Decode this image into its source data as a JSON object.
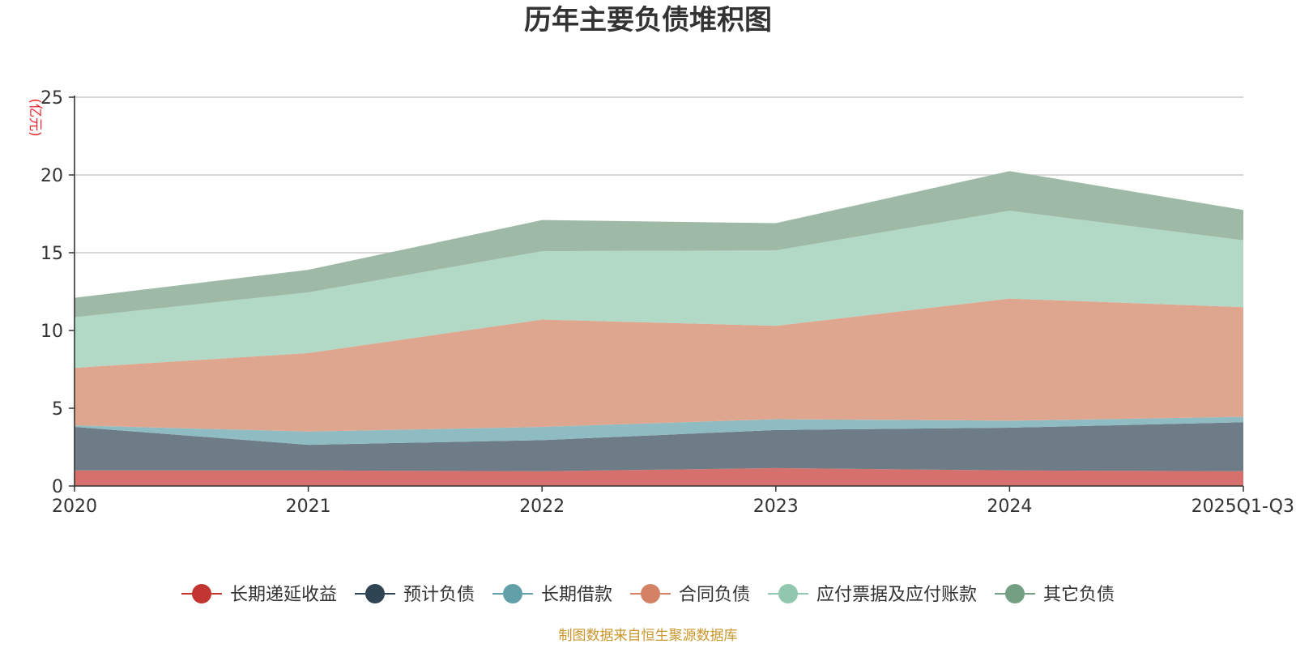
{
  "chart_data": {
    "type": "area",
    "stacked": true,
    "title": "历年主要负债堆积图",
    "ylabel": "(亿元)",
    "xlabel": "",
    "categories": [
      "2020",
      "2021",
      "2022",
      "2023",
      "2024",
      "2025Q1-Q3"
    ],
    "ylim": [
      0,
      25
    ],
    "yticks": [
      0,
      5,
      10,
      15,
      20,
      25
    ],
    "grid": true,
    "legend_position": "bottom",
    "series": [
      {
        "name": "长期递延收益",
        "color": "#c23531",
        "fill": "#d5706c",
        "values": [
          1.0,
          1.0,
          0.95,
          1.15,
          1.0,
          0.95
        ]
      },
      {
        "name": "预计负债",
        "color": "#2f4554",
        "fill": "#6e7c87",
        "values": [
          2.8,
          1.65,
          2.0,
          2.45,
          2.75,
          3.15
        ]
      },
      {
        "name": "长期借款",
        "color": "#61a0a8",
        "fill": "#8ebcc2",
        "values": [
          0.1,
          0.85,
          0.85,
          0.7,
          0.45,
          0.35
        ]
      },
      {
        "name": "合同负债",
        "color": "#d48265",
        "fill": "#dfa68f",
        "values": [
          3.7,
          5.05,
          6.9,
          6.0,
          7.85,
          7.05
        ]
      },
      {
        "name": "应付票据及应付账款",
        "color": "#91c7ae",
        "fill": "#b2d8c6",
        "values": [
          3.25,
          3.9,
          4.4,
          4.85,
          5.65,
          4.3
        ]
      },
      {
        "name": "其它负债",
        "color": "#749f83",
        "fill": "#9ebaa7",
        "values": [
          1.25,
          1.45,
          2.0,
          1.75,
          2.55,
          1.95
        ]
      }
    ],
    "source_note": "制图数据来自恒生聚源数据库"
  }
}
